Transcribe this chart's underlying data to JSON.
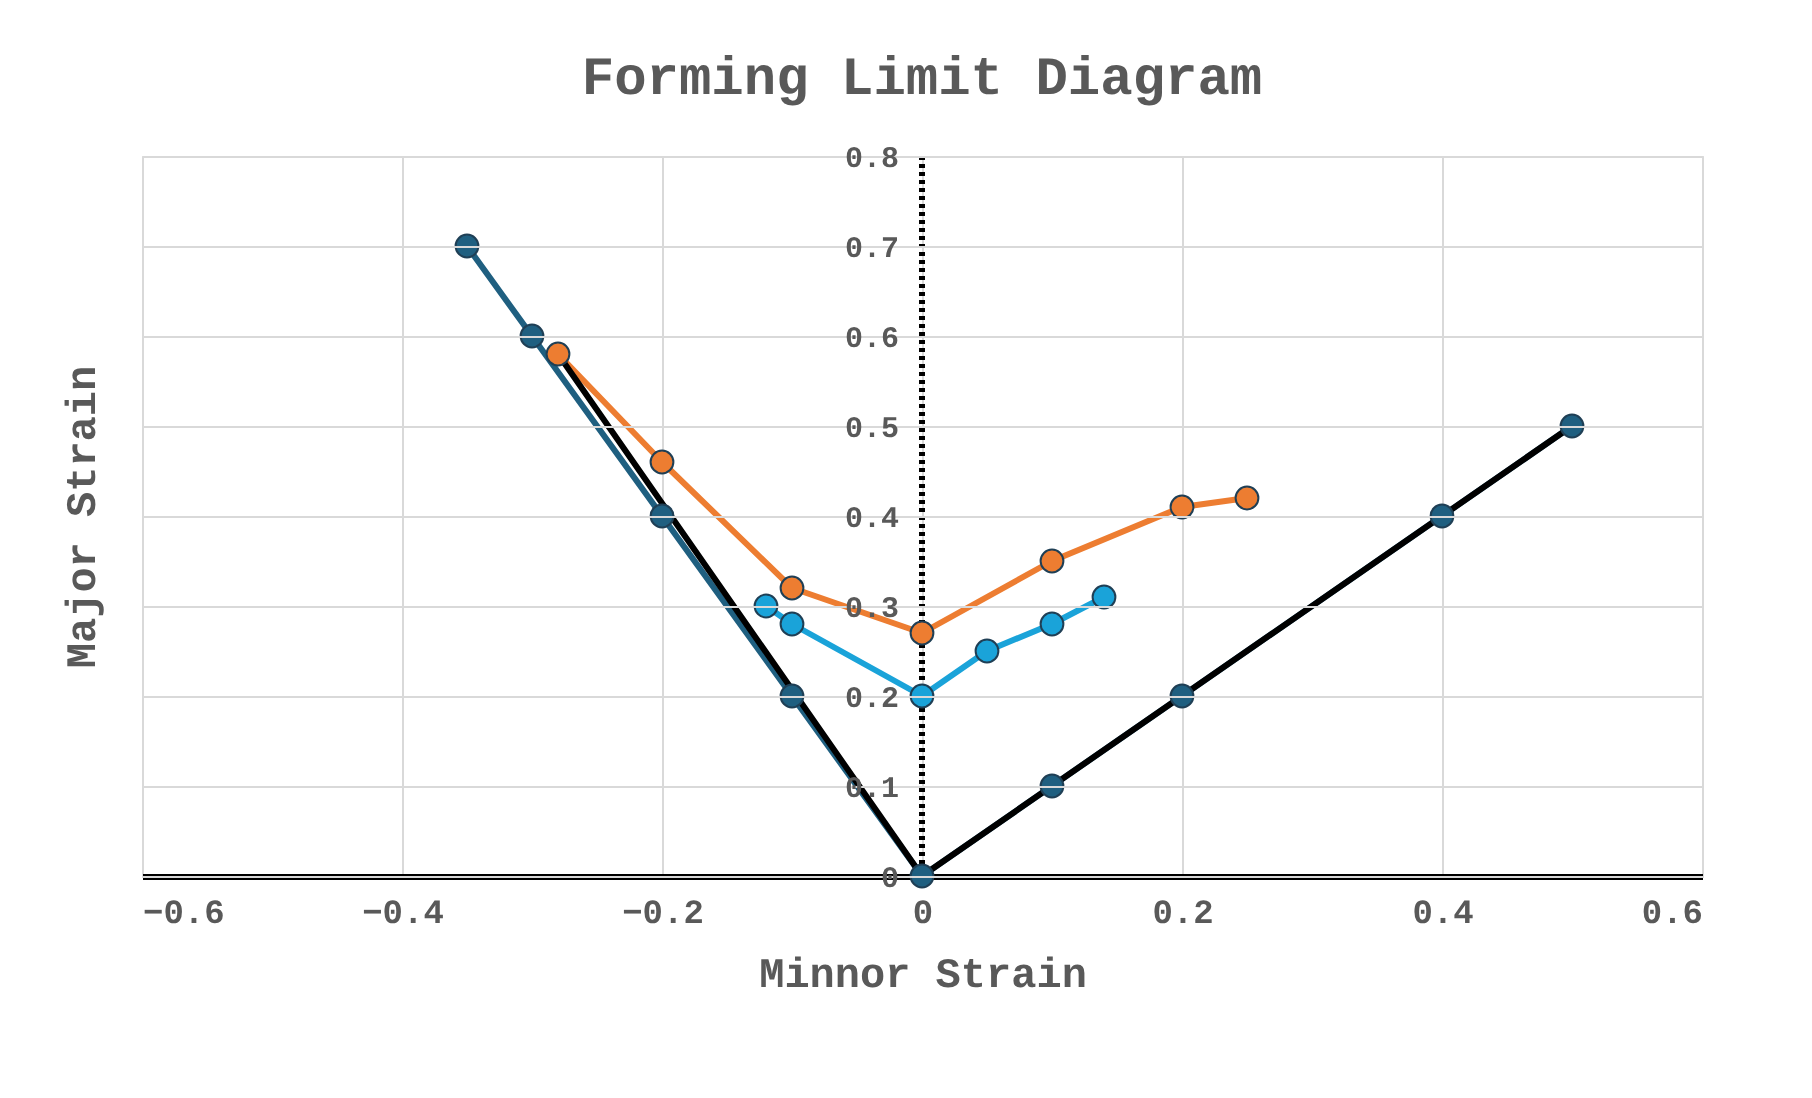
{
  "chart_data": {
    "type": "line",
    "title": "Forming Limit Diagram",
    "xlabel": "Minnor Strain",
    "ylabel": "Major Strain",
    "xlim": [
      -0.6,
      0.6
    ],
    "xticks": [
      -0.6,
      -0.4,
      -0.2,
      0,
      0.2,
      0.4,
      0.6
    ],
    "ylim": [
      0,
      0.8
    ],
    "yticks": [
      0,
      0.1,
      0.2,
      0.3,
      0.4,
      0.5,
      0.6,
      0.7,
      0.8
    ],
    "grid": true,
    "ref_lines": [
      {
        "axis": "x",
        "value": 0,
        "color": "#000000",
        "line_style": "dotted"
      }
    ],
    "legend": false,
    "marker": "circle",
    "line_style": "solid",
    "series": [
      {
        "color": "#1f5f80",
        "x": [
          -0.35,
          -0.3,
          -0.2,
          -0.1,
          0,
          0.1,
          0.2,
          0.4,
          0.5
        ],
        "values": [
          0.7,
          0.6,
          0.4,
          0.2,
          0,
          0.1,
          0.2,
          0.4,
          0.5
        ]
      },
      {
        "color": "#ed7d31",
        "x": [
          -0.28,
          -0.2,
          -0.1,
          0,
          0.1,
          0.2,
          0.25
        ],
        "values": [
          0.58,
          0.46,
          0.32,
          0.27,
          0.35,
          0.41,
          0.42
        ]
      },
      {
        "color": "#1aa3d9",
        "x": [
          -0.12,
          -0.1,
          0,
          0.05,
          0.1,
          0.14
        ],
        "values": [
          0.3,
          0.28,
          0.2,
          0.25,
          0.28,
          0.31
        ]
      },
      {
        "color": "#000000",
        "type": "line",
        "marker": "none",
        "x": [
          -0.28,
          0,
          0.5
        ],
        "values": [
          0.58,
          0,
          0.5
        ]
      }
    ]
  }
}
